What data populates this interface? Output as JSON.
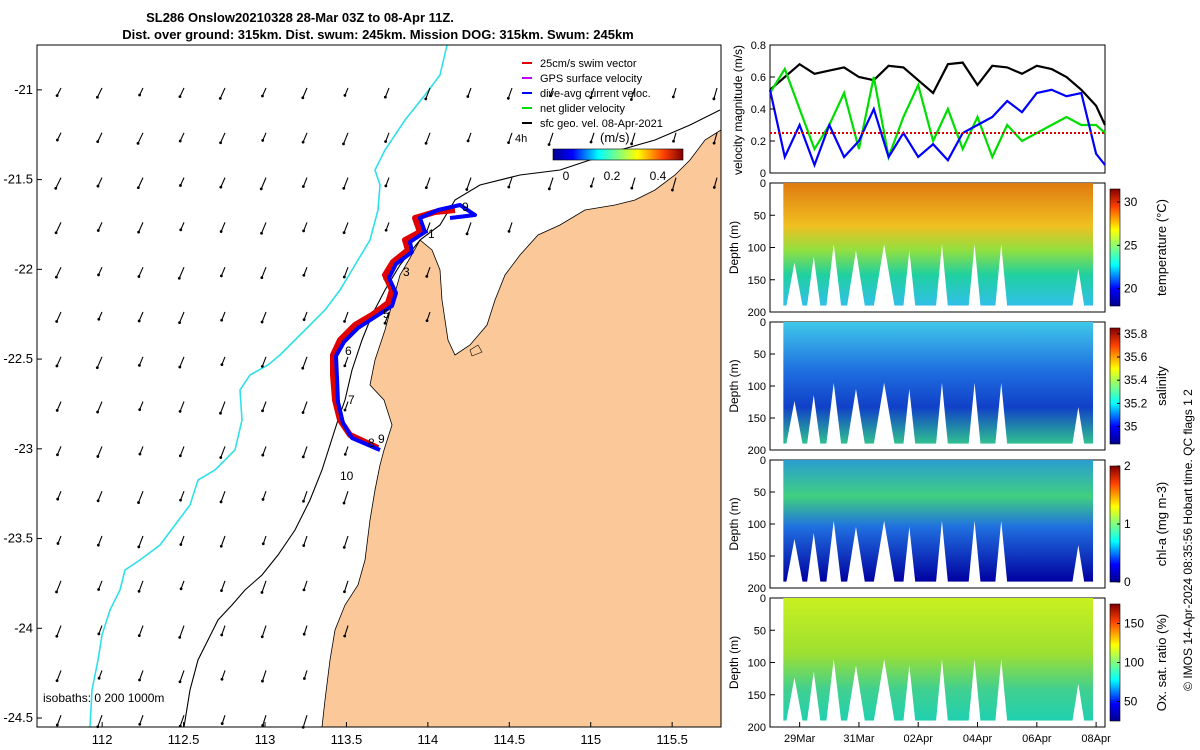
{
  "title": {
    "line1": "SL286 Onslow20210328 28-Mar 03Z to 08-Apr 11Z.",
    "line2": "Dist. over ground: 315km. Dist. swum: 245km. Mission DOG: 315km. Swum: 245km"
  },
  "map": {
    "x_ticks": [
      "112",
      "112.5",
      "113",
      "113.5",
      "114",
      "114.5",
      "115",
      "115.5"
    ],
    "x_tick_values": [
      112,
      112.5,
      113,
      113.5,
      114,
      114.5,
      115,
      115.5
    ],
    "y_ticks": [
      "-21",
      "-21.5",
      "-22",
      "-22.5",
      "-23",
      "-23.5",
      "-24",
      "-24.5"
    ],
    "y_tick_values": [
      -21,
      -21.5,
      -22,
      -22.5,
      -23,
      -23.5,
      -24,
      -24.5
    ],
    "xlim": [
      111.6,
      115.8
    ],
    "ylim": [
      -24.55,
      -20.75
    ],
    "legend": [
      {
        "label": "25cm/s swim vector",
        "color": "#e00000"
      },
      {
        "label": "GPS surface velocity",
        "color": "#c000ff"
      },
      {
        "label": "dive-avg current veloc.",
        "color": "#0000ff"
      },
      {
        "label": "net glider velocity",
        "color": "#00dd00"
      },
      {
        "label": "sfc geo. vel. 08-Apr-2021",
        "color": "#000000"
      }
    ],
    "legend_extra": "4h",
    "colorbar_title": "(m/s)",
    "colorbar_ticks": [
      "0",
      "0.2",
      "0.4"
    ],
    "day_labels": [
      "1",
      "3",
      "5",
      "6",
      "7",
      "8",
      "9",
      "9",
      "10"
    ],
    "isobaths_label": "isobaths: 0  200 1000m",
    "colors": {
      "land": "#fbc89a",
      "isobath_200": "#2fe0e8",
      "track_red": "#e00000",
      "track_blue": "#0000ff"
    }
  },
  "chart_data": [
    {
      "type": "line",
      "ylabel": "velocity magnitude (m/s)",
      "ylim": [
        0,
        0.8
      ],
      "y_ticks": [
        "0",
        "0.2",
        "0.4",
        "0.6",
        "0.8"
      ],
      "y_tick_values": [
        0,
        0.2,
        0.4,
        0.6,
        0.8
      ],
      "x": [
        0,
        0.5,
        1,
        1.5,
        2,
        2.5,
        3,
        3.5,
        4,
        4.5,
        5,
        5.5,
        6,
        6.5,
        7,
        7.5,
        8,
        8.5,
        9,
        9.5,
        10,
        10.5,
        11,
        11.3
      ],
      "series": [
        {
          "name": "black",
          "color": "#000000",
          "values": [
            0.52,
            0.6,
            0.68,
            0.62,
            0.64,
            0.66,
            0.6,
            0.58,
            0.67,
            0.66,
            0.58,
            0.5,
            0.68,
            0.69,
            0.55,
            0.67,
            0.66,
            0.62,
            0.67,
            0.65,
            0.6,
            0.52,
            0.42,
            0.3
          ]
        },
        {
          "name": "green",
          "color": "#00dd00",
          "values": [
            0.5,
            0.65,
            0.4,
            0.15,
            0.3,
            0.5,
            0.15,
            0.6,
            0.1,
            0.35,
            0.55,
            0.2,
            0.4,
            0.15,
            0.35,
            0.1,
            0.3,
            0.2,
            0.25,
            0.3,
            0.35,
            0.3,
            0.3,
            0.25
          ]
        },
        {
          "name": "blue",
          "color": "#0000ff",
          "values": [
            0.52,
            0.1,
            0.3,
            0.05,
            0.3,
            0.1,
            0.2,
            0.4,
            0.1,
            0.25,
            0.1,
            0.18,
            0.08,
            0.25,
            0.3,
            0.35,
            0.45,
            0.38,
            0.5,
            0.52,
            0.48,
            0.5,
            0.12,
            0.05
          ]
        },
        {
          "name": "red",
          "color": "#e00000",
          "values": [
            0.25,
            0.25,
            0.25,
            0.25,
            0.25,
            0.25,
            0.25,
            0.25,
            0.25,
            0.25,
            0.25,
            0.25,
            0.25,
            0.25,
            0.25,
            0.25,
            0.25,
            0.25,
            0.25,
            0.25,
            0.25,
            0.25,
            0.25,
            0.25
          ]
        }
      ]
    },
    {
      "type": "heatmap",
      "ylabel": "Depth (m)",
      "cbar_label": "temperature (°C)",
      "ylim": [
        200,
        0
      ],
      "y_ticks": [
        "0",
        "50",
        "100",
        "150",
        "200"
      ],
      "y_tick_values": [
        0,
        50,
        100,
        150,
        200
      ],
      "cbar_ticks": [
        "20",
        "25",
        "30"
      ],
      "cbar_tick_values": [
        20,
        25,
        30
      ],
      "crange": [
        18,
        31.5
      ]
    },
    {
      "type": "heatmap",
      "ylabel": "Depth (m)",
      "cbar_label": "salinity",
      "ylim": [
        200,
        0
      ],
      "y_ticks": [
        "0",
        "50",
        "100",
        "150",
        "200"
      ],
      "y_tick_values": [
        0,
        50,
        100,
        150,
        200
      ],
      "cbar_ticks": [
        "35",
        "35.2",
        "35.4",
        "35.6",
        "35.8"
      ],
      "cbar_tick_values": [
        35,
        35.2,
        35.4,
        35.6,
        35.8
      ],
      "crange": [
        34.85,
        35.85
      ]
    },
    {
      "type": "heatmap",
      "ylabel": "Depth (m)",
      "cbar_label": "chl-a (mg m-3)",
      "ylim": [
        200,
        0
      ],
      "y_ticks": [
        "0",
        "50",
        "100",
        "150",
        "200"
      ],
      "y_tick_values": [
        0,
        50,
        100,
        150,
        200
      ],
      "cbar_ticks": [
        "0",
        "1",
        "2"
      ],
      "cbar_tick_values": [
        0,
        1,
        2
      ],
      "crange": [
        0,
        2
      ]
    },
    {
      "type": "heatmap",
      "ylabel": "Depth (m)",
      "cbar_label": "Ox. sat. ratio (%)",
      "ylim": [
        200,
        0
      ],
      "y_ticks": [
        "0",
        "50",
        "100",
        "150",
        "200"
      ],
      "y_tick_values": [
        0,
        50,
        100,
        150,
        200
      ],
      "cbar_ticks": [
        "50",
        "100",
        "150"
      ],
      "cbar_tick_values": [
        50,
        100,
        150
      ],
      "crange": [
        25,
        175
      ]
    }
  ],
  "time_axis": {
    "labels": [
      "29Mar",
      "31Mar",
      "02Apr",
      "04Apr",
      "06Apr",
      "08Apr"
    ],
    "day_values": [
      1,
      3,
      5,
      7,
      9,
      11
    ],
    "xlim": [
      0,
      11.3
    ]
  },
  "side_note": "© IMOS 14-Apr-2024 08:35:56 Hobart time. QC flags 1  2"
}
